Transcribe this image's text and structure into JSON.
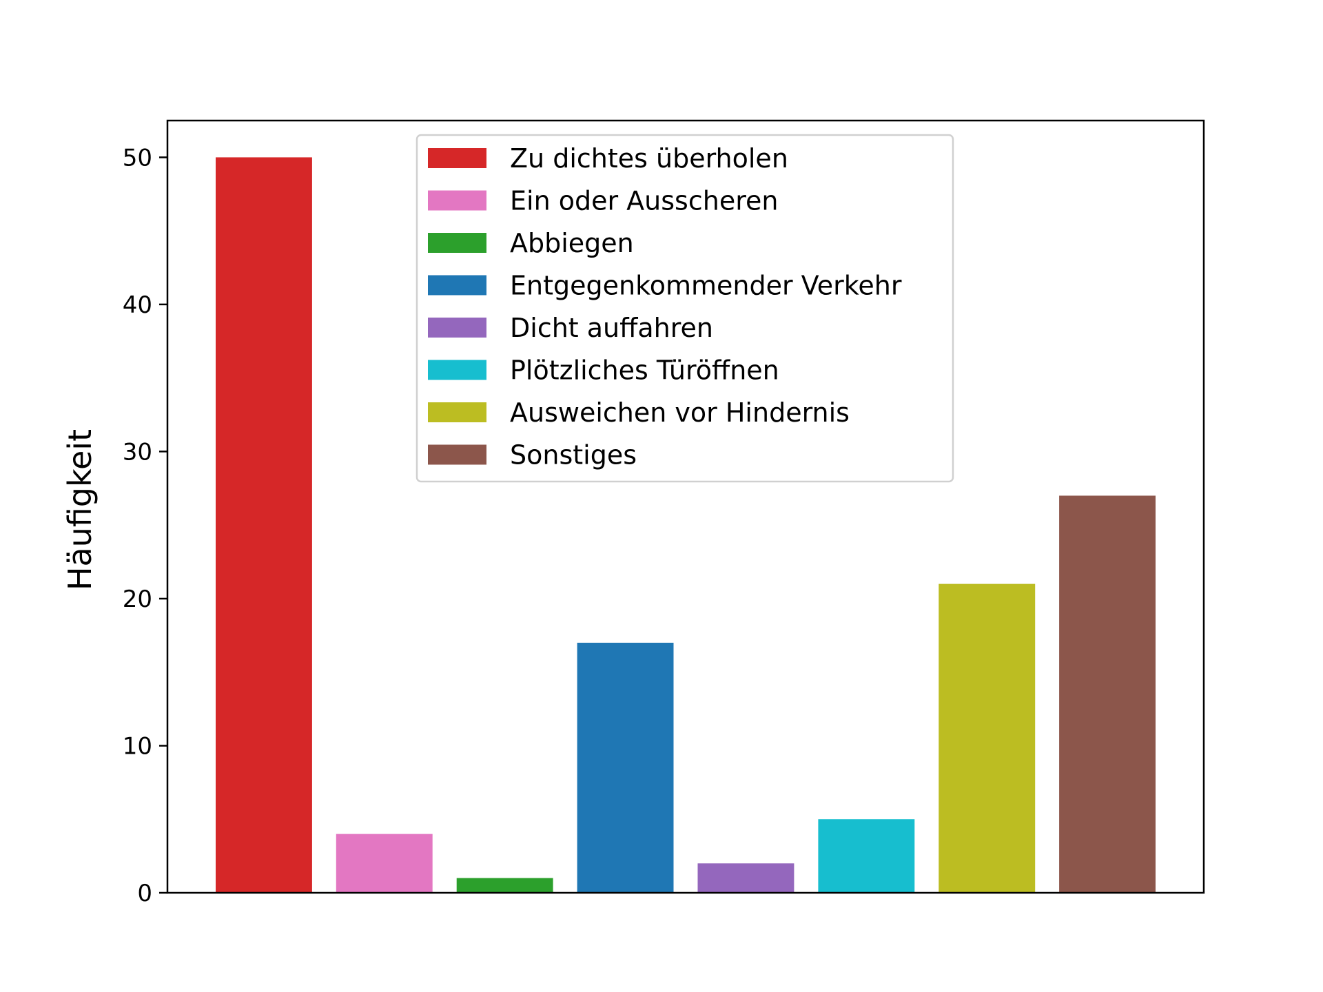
{
  "chart_data": {
    "type": "bar",
    "categories": [
      "Zu dichtes überholen",
      "Ein oder Ausscheren",
      "Abbiegen",
      "Entgegenkommender Verkehr",
      "Dicht auffahren",
      "Plötzliches Türöffnen",
      "Ausweichen vor Hindernis",
      "Sonstiges"
    ],
    "values": [
      50,
      4,
      1,
      17,
      2,
      5,
      21,
      27
    ],
    "colors": [
      "#d62728",
      "#e377c2",
      "#2ca02c",
      "#1f77b4",
      "#9467bd",
      "#17becf",
      "#bcbd22",
      "#8c564b"
    ],
    "title": "",
    "xlabel": "",
    "ylabel": "Häufigkeit",
    "ylim": [
      0,
      52.5
    ],
    "yticks": [
      "0",
      "10",
      "20",
      "30",
      "40",
      "50"
    ],
    "grid": false,
    "legend": "top-center"
  }
}
